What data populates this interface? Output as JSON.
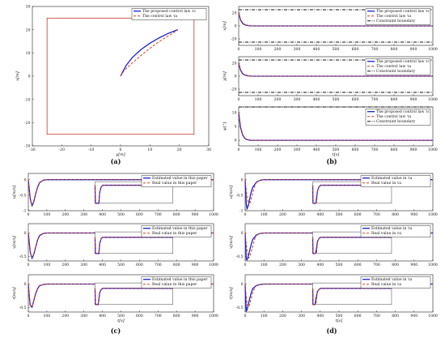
{
  "figure": {
    "panel_labels": [
      "(a)",
      "(b)",
      "(c)",
      "(d)"
    ]
  },
  "colors": {
    "proposed": "#1f1fd0",
    "baseline": "#c8421e",
    "constraint": "#111111",
    "boundary_box": "#c0392b"
  },
  "chart_data": [
    {
      "id": "a",
      "type": "line",
      "xlabel": "y[m]",
      "ylabel": "x[m]",
      "xlim": [
        -30,
        30
      ],
      "ylim": [
        -30,
        30
      ],
      "xticks": [
        -30,
        -20,
        -10,
        0,
        10,
        20,
        30
      ],
      "yticks": [
        -30,
        -20,
        -10,
        0,
        10,
        20,
        30
      ],
      "grid": false,
      "legend_position": "top-right",
      "region": {
        "x": [
          -25,
          25
        ],
        "y": [
          -25,
          25
        ]
      },
      "series": [
        {
          "name": "The proposed control law τc",
          "style": "solid",
          "x": [
            0,
            1,
            2,
            4,
            7,
            10,
            13,
            16,
            18,
            19.5
          ],
          "y": [
            0,
            2.5,
            4.8,
            8,
            11.5,
            14.2,
            16.4,
            18.3,
            19.3,
            20
          ]
        },
        {
          "name": "The control law τa",
          "style": "dashed",
          "x": [
            0,
            1,
            2.5,
            5,
            8,
            11,
            14,
            17,
            19.5
          ],
          "y": [
            0,
            2,
            4,
            6.8,
            10,
            13,
            15.6,
            17.9,
            20
          ]
        }
      ]
    },
    {
      "id": "b1",
      "type": "line",
      "xlabel": "",
      "ylabel": "x[m]",
      "xlim": [
        0,
        1000
      ],
      "ylim": [
        -30,
        30
      ],
      "xticks": [
        0,
        100,
        200,
        300,
        400,
        500,
        600,
        700,
        800,
        900,
        1000
      ],
      "yticks": [
        -20,
        0,
        20
      ],
      "legend_position": "top-right",
      "series": [
        {
          "name": "The proposed control law τc",
          "style": "solid",
          "x": [
            0,
            5,
            10,
            20,
            30,
            40,
            50,
            60,
            80,
            100,
            1000
          ],
          "y": [
            20,
            14,
            9,
            4,
            2,
            1,
            0.5,
            0.2,
            0,
            0,
            0
          ]
        },
        {
          "name": "The control law τa",
          "style": "dashed",
          "x": [
            0,
            5,
            10,
            20,
            30,
            40,
            50,
            60,
            80,
            100,
            1000
          ],
          "y": [
            20,
            15,
            10,
            5,
            2.5,
            1.2,
            0.6,
            0.3,
            0,
            0,
            0
          ]
        },
        {
          "name": "Constraint boundary",
          "style": "dashdot",
          "x": [
            0,
            1000
          ],
          "y": [
            25,
            25
          ]
        },
        {
          "name": "",
          "style": "dashdot",
          "x": [
            0,
            1000
          ],
          "y": [
            -25,
            -25
          ]
        }
      ]
    },
    {
      "id": "b2",
      "type": "line",
      "xlabel": "",
      "ylabel": "y[m]",
      "xlim": [
        0,
        1000
      ],
      "ylim": [
        -30,
        30
      ],
      "xticks": [
        0,
        100,
        200,
        300,
        400,
        500,
        600,
        700,
        800,
        900,
        1000
      ],
      "yticks": [
        -20,
        0,
        20
      ],
      "legend_position": "top-right",
      "series": [
        {
          "name": "The proposed control law τc",
          "style": "solid",
          "x": [
            0,
            5,
            10,
            20,
            30,
            40,
            50,
            60,
            80,
            100,
            1000
          ],
          "y": [
            20,
            14,
            9,
            4,
            2,
            1,
            0.5,
            0.2,
            0,
            0,
            0
          ]
        },
        {
          "name": "The control law τa",
          "style": "dashed",
          "x": [
            0,
            5,
            10,
            20,
            30,
            40,
            50,
            60,
            80,
            100,
            1000
          ],
          "y": [
            20,
            15,
            10,
            5,
            2.5,
            1.2,
            0.6,
            0.3,
            0,
            0,
            0
          ]
        },
        {
          "name": "Constraint boundary",
          "style": "dashdot",
          "x": [
            0,
            1000
          ],
          "y": [
            25,
            25
          ]
        },
        {
          "name": "",
          "style": "dashdot",
          "x": [
            0,
            1000
          ],
          "y": [
            -25,
            -25
          ]
        }
      ]
    },
    {
      "id": "b3",
      "type": "line",
      "xlabel": "t[s]",
      "ylabel": "ψ[°]",
      "xlim": [
        0,
        1000
      ],
      "ylim": [
        -2,
        12
      ],
      "xticks": [
        0,
        100,
        200,
        300,
        400,
        500,
        600,
        700,
        800,
        900,
        1000
      ],
      "yticks": [
        0,
        5,
        10
      ],
      "legend_position": "top-right",
      "series": [
        {
          "name": "The proposed control law τc",
          "style": "solid",
          "x": [
            0,
            5,
            10,
            20,
            30,
            40,
            60,
            80,
            100,
            1000
          ],
          "y": [
            10,
            7,
            4.5,
            2,
            0.8,
            0.3,
            0,
            0,
            0,
            0
          ]
        },
        {
          "name": "The control law τa",
          "style": "dashed",
          "x": [
            0,
            5,
            10,
            20,
            30,
            40,
            60,
            80,
            100,
            1000
          ],
          "y": [
            10,
            7.5,
            5,
            2.3,
            1,
            0.4,
            0.1,
            0,
            0,
            0
          ]
        },
        {
          "name": "Constraint boundary",
          "style": "dashdot",
          "x": [
            0,
            1000
          ],
          "y": [
            12,
            12
          ]
        }
      ]
    },
    {
      "id": "c1",
      "type": "line",
      "xlabel": "",
      "ylabel": "u[m/s]",
      "xlim": [
        0,
        1000
      ],
      "ylim": [
        -1,
        0.2
      ],
      "xticks": [
        0,
        100,
        200,
        300,
        400,
        500,
        600,
        700,
        800,
        900,
        1000
      ],
      "yticks": [
        -1,
        -0.5,
        0
      ],
      "legend_position": "top-right",
      "series": [
        {
          "name": "Estimated value in this paper",
          "style": "solid",
          "x": [
            0,
            5,
            10,
            20,
            30,
            40,
            50,
            60,
            80,
            100,
            1000
          ],
          "y": [
            0,
            -0.3,
            -0.6,
            -0.85,
            -0.7,
            -0.45,
            -0.25,
            -0.1,
            -0.02,
            0,
            0
          ]
        },
        {
          "name": "Real value in this paper",
          "style": "dashed",
          "x": [
            0,
            5,
            10,
            20,
            30,
            40,
            50,
            60,
            80,
            100,
            1000
          ],
          "y": [
            0,
            -0.28,
            -0.58,
            -0.83,
            -0.68,
            -0.43,
            -0.23,
            -0.09,
            -0.02,
            0,
            0
          ]
        }
      ]
    },
    {
      "id": "c2",
      "type": "line",
      "xlabel": "",
      "ylabel": "v[m/s]",
      "xlim": [
        0,
        1000
      ],
      "ylim": [
        -0.6,
        0.2
      ],
      "xticks": [
        0,
        100,
        200,
        300,
        400,
        500,
        600,
        700,
        800,
        900,
        1000
      ],
      "yticks": [
        -0.5,
        0
      ],
      "legend_position": "top-right",
      "series": [
        {
          "name": "Estimated value in this paper",
          "style": "solid",
          "x": [
            0,
            5,
            10,
            20,
            30,
            40,
            50,
            60,
            80,
            100,
            1000
          ],
          "y": [
            0,
            -0.2,
            -0.4,
            -0.55,
            -0.45,
            -0.3,
            -0.15,
            -0.06,
            -0.01,
            0,
            0
          ]
        },
        {
          "name": "Real value in this paper",
          "style": "dashed",
          "x": [
            0,
            5,
            10,
            20,
            30,
            40,
            50,
            60,
            80,
            100,
            1000
          ],
          "y": [
            0,
            -0.19,
            -0.39,
            -0.54,
            -0.44,
            -0.29,
            -0.14,
            -0.05,
            -0.01,
            0,
            0
          ]
        }
      ]
    },
    {
      "id": "c3",
      "type": "line",
      "xlabel": "t[s]",
      "ylabel": "r[m/s]",
      "xlim": [
        0,
        1000
      ],
      "ylim": [
        -0.6,
        0.2
      ],
      "xticks": [
        0,
        100,
        200,
        300,
        400,
        500,
        600,
        700,
        800,
        900,
        1000
      ],
      "yticks": [
        -0.5,
        0
      ],
      "legend_position": "top-right",
      "series": [
        {
          "name": "Estimated value in this paper",
          "style": "solid",
          "x": [
            0,
            5,
            10,
            20,
            30,
            40,
            50,
            60,
            80,
            100,
            1000
          ],
          "y": [
            0,
            -0.25,
            -0.45,
            -0.5,
            -0.35,
            -0.2,
            -0.1,
            -0.04,
            -0.01,
            0,
            0
          ]
        },
        {
          "name": "Real value in this paper",
          "style": "dashed",
          "x": [
            0,
            5,
            10,
            20,
            30,
            40,
            50,
            60,
            80,
            100,
            1000
          ],
          "y": [
            0,
            -0.24,
            -0.44,
            -0.49,
            -0.34,
            -0.19,
            -0.09,
            -0.03,
            -0.01,
            0,
            0
          ]
        }
      ]
    },
    {
      "id": "d1",
      "type": "line",
      "xlabel": "",
      "ylabel": "u[m/s]",
      "xlim": [
        0,
        1000
      ],
      "ylim": [
        -1,
        0.2
      ],
      "xticks": [
        0,
        100,
        200,
        300,
        400,
        500,
        600,
        700,
        800,
        900,
        1000
      ],
      "yticks": [
        -1,
        -0.5,
        0
      ],
      "legend_position": "top-right",
      "series": [
        {
          "name": "Estimated value in τa",
          "style": "solid",
          "x": [
            0,
            3,
            6,
            10,
            20,
            30,
            40,
            60,
            80,
            100,
            1000
          ],
          "y": [
            0,
            -0.4,
            -0.8,
            -0.95,
            -0.75,
            -0.45,
            -0.25,
            -0.08,
            -0.02,
            0,
            0
          ]
        },
        {
          "name": "Real value in τa",
          "style": "dashed",
          "x": [
            0,
            5,
            10,
            20,
            30,
            40,
            50,
            60,
            80,
            100,
            1000
          ],
          "y": [
            0,
            -0.28,
            -0.58,
            -0.83,
            -0.68,
            -0.43,
            -0.23,
            -0.09,
            -0.02,
            0,
            0
          ]
        }
      ]
    },
    {
      "id": "d2",
      "type": "line",
      "xlabel": "",
      "ylabel": "v[m/s]",
      "xlim": [
        0,
        1000
      ],
      "ylim": [
        -0.6,
        0.2
      ],
      "xticks": [
        0,
        100,
        200,
        300,
        400,
        500,
        600,
        700,
        800,
        900,
        1000
      ],
      "yticks": [
        -0.5,
        0
      ],
      "legend_position": "top-right",
      "series": [
        {
          "name": "Estimated value in τa",
          "style": "solid",
          "x": [
            0,
            3,
            6,
            10,
            20,
            30,
            40,
            60,
            80,
            100,
            1000
          ],
          "y": [
            0,
            -0.3,
            -0.55,
            -0.58,
            -0.45,
            -0.28,
            -0.14,
            -0.04,
            -0.01,
            0,
            0
          ]
        },
        {
          "name": "Real value in τa",
          "style": "dashed",
          "x": [
            0,
            5,
            10,
            20,
            30,
            40,
            50,
            60,
            80,
            100,
            1000
          ],
          "y": [
            0,
            -0.19,
            -0.39,
            -0.54,
            -0.44,
            -0.29,
            -0.14,
            -0.05,
            -0.01,
            0,
            0
          ]
        }
      ]
    },
    {
      "id": "d3",
      "type": "line",
      "xlabel": "t[s]",
      "ylabel": "r[m/s]",
      "xlim": [
        0,
        1000
      ],
      "ylim": [
        -0.6,
        0.2
      ],
      "xticks": [
        0,
        100,
        200,
        300,
        400,
        500,
        600,
        700,
        800,
        900,
        1000
      ],
      "yticks": [
        -0.5,
        0
      ],
      "legend_position": "top-right",
      "series": [
        {
          "name": "Estimated value in τa",
          "style": "solid",
          "x": [
            0,
            3,
            6,
            10,
            20,
            30,
            40,
            60,
            80,
            100,
            1000
          ],
          "y": [
            0,
            -0.35,
            -0.58,
            -0.55,
            -0.38,
            -0.22,
            -0.1,
            -0.03,
            -0.01,
            0,
            0
          ]
        },
        {
          "name": "Real value in τa",
          "style": "dashed",
          "x": [
            0,
            5,
            10,
            20,
            30,
            40,
            50,
            60,
            80,
            100,
            1000
          ],
          "y": [
            0,
            -0.24,
            -0.44,
            -0.49,
            -0.34,
            -0.19,
            -0.09,
            -0.03,
            -0.01,
            0,
            0
          ]
        }
      ]
    }
  ]
}
